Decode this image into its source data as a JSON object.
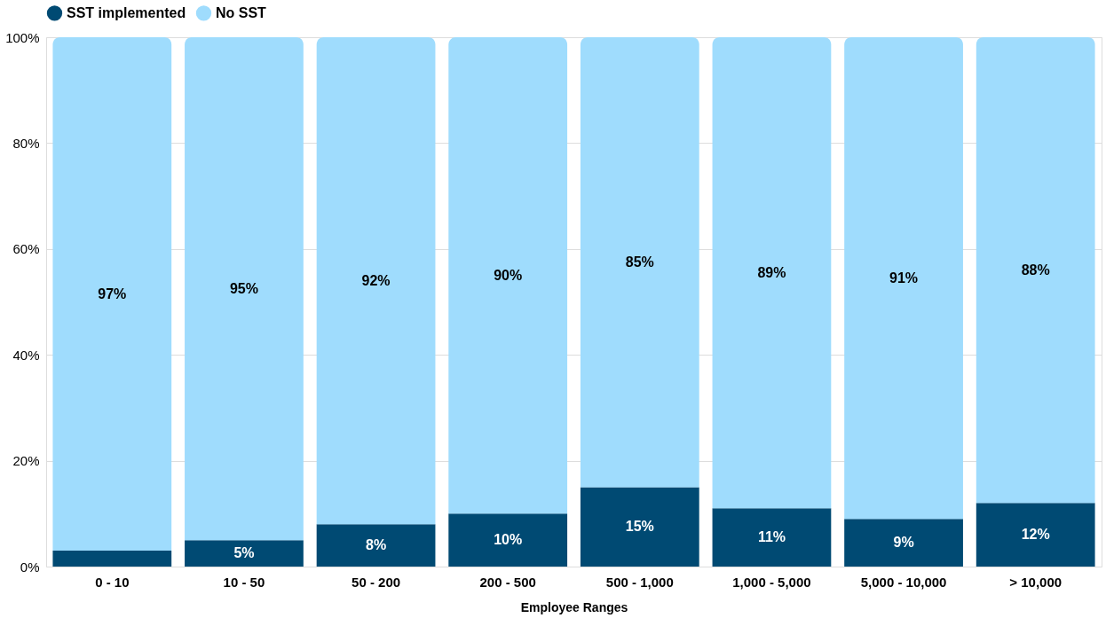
{
  "chart_data": {
    "type": "bar",
    "stacked": true,
    "xlabel": "Employee Ranges",
    "categories": [
      "0 - 10",
      "10 - 50",
      "50 - 200",
      "200 - 500",
      "500 - 1,000",
      "1,000 - 5,000",
      "5,000 - 10,000",
      "> 10,000"
    ],
    "series": [
      {
        "name": "SST implemented",
        "color": "#004a73",
        "values": [
          3,
          5,
          8,
          10,
          15,
          11,
          9,
          12
        ],
        "value_labels": [
          null,
          "5%",
          "8%",
          "10%",
          "15%",
          "11%",
          "9%",
          "12%"
        ]
      },
      {
        "name": "No SST",
        "color": "#9fdcfd",
        "values": [
          97,
          95,
          92,
          90,
          85,
          89,
          91,
          88
        ],
        "value_labels": [
          "97%",
          "95%",
          "92%",
          "90%",
          "85%",
          "89%",
          "91%",
          "88%"
        ]
      }
    ],
    "ylim": [
      0,
      100
    ],
    "yticks": [
      {
        "value": 0,
        "label": "0%"
      },
      {
        "value": 20,
        "label": "20%"
      },
      {
        "value": 40,
        "label": "40%"
      },
      {
        "value": 60,
        "label": "60%"
      },
      {
        "value": 80,
        "label": "80%"
      },
      {
        "value": 100,
        "label": "100%"
      }
    ],
    "grid": "y",
    "legend": "top"
  }
}
